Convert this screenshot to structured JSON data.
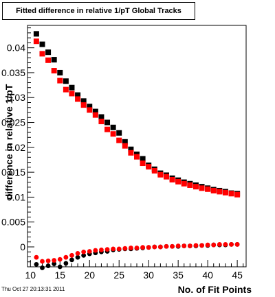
{
  "title": "Fitted difference in relative 1/pT  Global Tracks",
  "footer": "Thu Oct 27 20:13:31 2011",
  "chart_data": {
    "type": "scatter",
    "title": "Fitted difference in relative 1/pT  Global Tracks",
    "xlabel": "No. of Fit Points",
    "ylabel": "difference in relative 1/pT",
    "xlim": [
      9.5,
      46.5
    ],
    "ylim": [
      -0.004,
      0.0445
    ],
    "x_ticks": [
      10,
      15,
      20,
      25,
      30,
      35,
      40,
      45
    ],
    "x_tick_labels": [
      "10",
      "15",
      "20",
      "25",
      "30",
      "35",
      "40",
      "45"
    ],
    "y_ticks": [
      0,
      0.005,
      0.01,
      0.015,
      0.02,
      0.025,
      0.03,
      0.035,
      0.04
    ],
    "y_tick_labels": [
      "0",
      "0.005",
      "0.01",
      "0.015",
      "0.02",
      "0.025",
      "0.03",
      "0.035",
      "0.04"
    ],
    "grid": false,
    "legend": "none",
    "series": [
      {
        "color": "#000000",
        "marker": "square",
        "x": [
          11,
          12,
          13,
          14,
          15,
          16,
          17,
          18,
          19,
          20,
          21,
          22,
          23,
          24,
          25,
          26,
          27,
          28,
          29,
          30,
          31,
          32,
          33,
          34,
          35,
          36,
          37,
          38,
          39,
          40,
          41,
          42,
          43,
          44,
          45
        ],
        "values": [
          0.0428,
          0.0407,
          0.0391,
          0.0376,
          0.035,
          0.0333,
          0.032,
          0.0305,
          0.0293,
          0.0282,
          0.0272,
          0.0261,
          0.025,
          0.024,
          0.0229,
          0.0211,
          0.0196,
          0.0186,
          0.0177,
          0.0164,
          0.0156,
          0.0148,
          0.0144,
          0.0138,
          0.0134,
          0.013,
          0.0127,
          0.0124,
          0.0121,
          0.0118,
          0.0115,
          0.0113,
          0.0111,
          0.0108,
          0.0107
        ]
      },
      {
        "color": "#ff0000",
        "marker": "square",
        "x": [
          11,
          12,
          13,
          14,
          15,
          16,
          17,
          18,
          19,
          20,
          21,
          22,
          23,
          24,
          25,
          26,
          27,
          28,
          29,
          30,
          31,
          32,
          33,
          34,
          35,
          36,
          37,
          38,
          39,
          40,
          41,
          42,
          43,
          44,
          45
        ],
        "values": [
          0.0413,
          0.0388,
          0.0375,
          0.0354,
          0.0334,
          0.0316,
          0.0308,
          0.0297,
          0.0285,
          0.0275,
          0.0265,
          0.0252,
          0.0236,
          0.0227,
          0.0214,
          0.0203,
          0.0189,
          0.0181,
          0.0168,
          0.0161,
          0.0153,
          0.0145,
          0.0141,
          0.0135,
          0.0131,
          0.0127,
          0.0124,
          0.0121,
          0.0118,
          0.0116,
          0.0113,
          0.0111,
          0.0109,
          0.0107,
          0.0105
        ]
      },
      {
        "color": "#000000",
        "marker": "circle",
        "x": [
          11,
          12,
          13,
          14,
          15,
          16,
          17,
          18,
          19,
          20,
          21,
          22,
          23,
          24,
          25,
          26,
          27,
          28,
          29,
          30,
          31,
          32,
          33,
          34,
          35,
          36,
          37,
          38,
          39,
          40,
          41,
          42,
          43,
          44,
          45
        ],
        "values": [
          -0.0035,
          -0.0042,
          -0.0038,
          -0.0034,
          -0.004,
          -0.0033,
          -0.0026,
          -0.0021,
          -0.0017,
          -0.0014,
          -0.0012,
          -0.001,
          -0.0009,
          -0.0006,
          -0.0005,
          -0.0004,
          -0.0004,
          -0.0003,
          -0.0002,
          -0.0001,
          0.0,
          0.0,
          0.0001,
          0.0001,
          0.0001,
          0.0002,
          0.0002,
          0.0002,
          0.0003,
          0.0003,
          0.0004,
          0.0004,
          0.0004,
          0.0005,
          0.0005
        ]
      },
      {
        "color": "#ff0000",
        "marker": "circle",
        "x": [
          11,
          12,
          13,
          14,
          15,
          16,
          17,
          18,
          19,
          20,
          21,
          22,
          23,
          24,
          25,
          26,
          27,
          28,
          29,
          30,
          31,
          32,
          33,
          34,
          35,
          36,
          37,
          38,
          39,
          40,
          41,
          42,
          43,
          44,
          45
        ],
        "values": [
          -0.0021,
          -0.0029,
          -0.0028,
          -0.0027,
          -0.0025,
          -0.0021,
          -0.0017,
          -0.0013,
          -0.001,
          -0.0009,
          -0.0007,
          -0.0006,
          -0.0005,
          -0.0004,
          -0.0004,
          -0.0003,
          -0.0002,
          -0.0002,
          -0.0001,
          -0.0001,
          0.0,
          0.0,
          0.0001,
          0.0001,
          0.0002,
          0.0002,
          0.0002,
          0.0003,
          0.0003,
          0.0004,
          0.0004,
          0.0005,
          0.0005,
          0.0005,
          0.0005
        ]
      }
    ]
  }
}
